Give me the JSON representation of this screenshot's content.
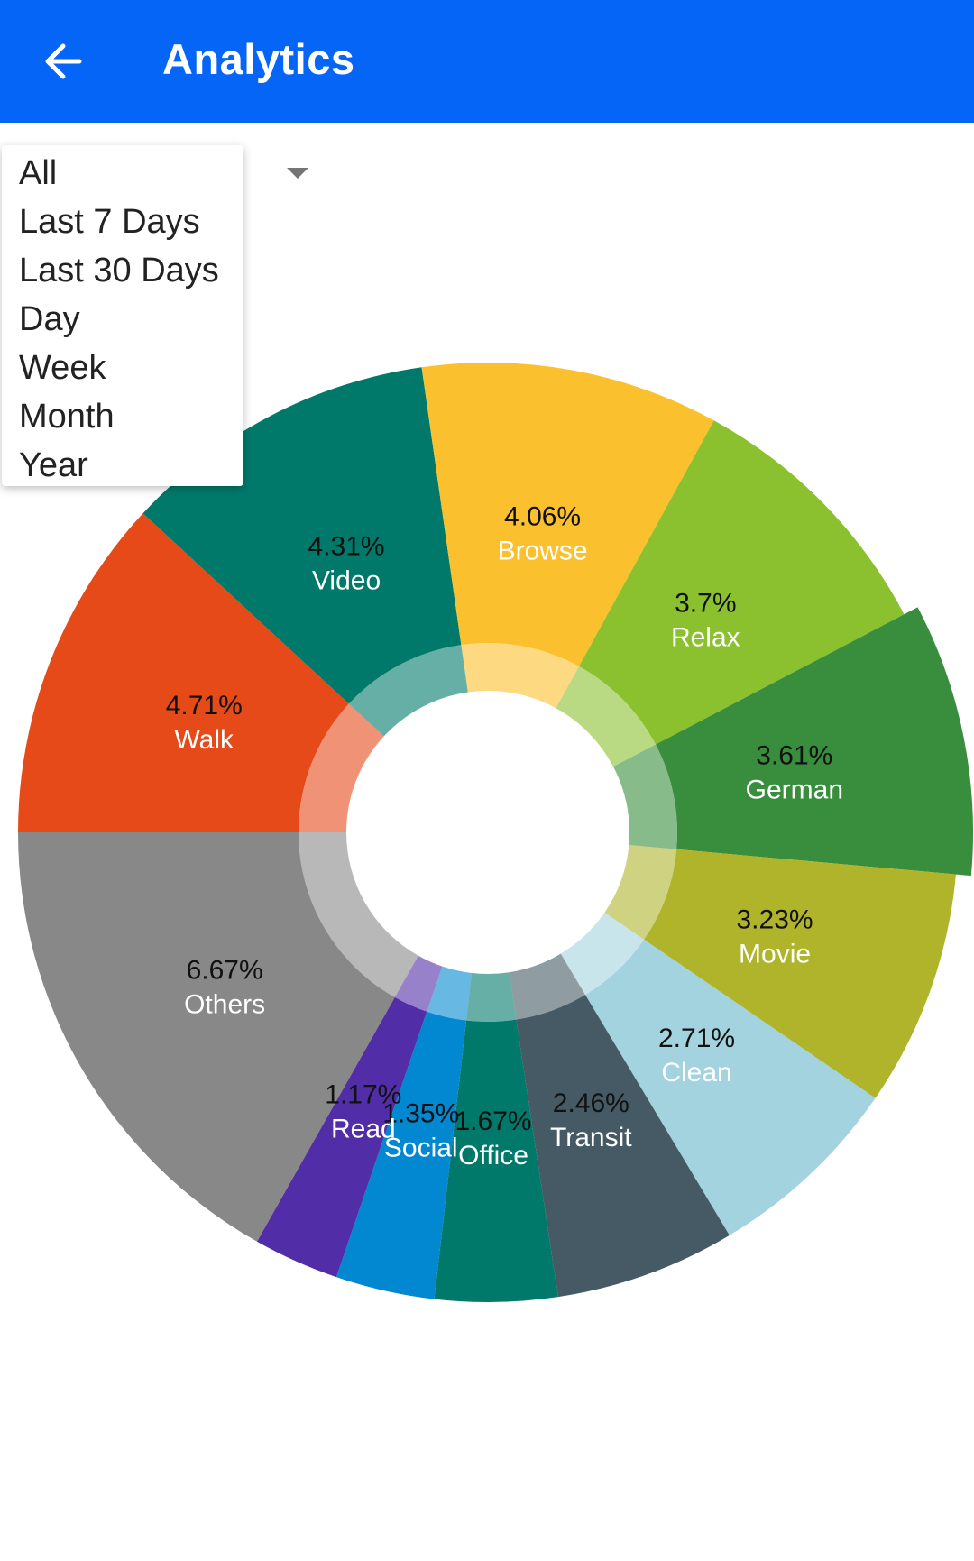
{
  "header": {
    "title": "Analytics",
    "back_icon": "arrow-left-icon",
    "color": "#0565f6"
  },
  "filter": {
    "dropdown_icon": "triangle-down-icon",
    "options": [
      "All",
      "Last 7 Days",
      "Last 30 Days",
      "Day",
      "Week",
      "Month",
      "Year"
    ]
  },
  "chart_data": {
    "type": "pie",
    "variant": "donut",
    "unit": "%",
    "highlighted": "German",
    "slices": [
      {
        "name": "Walk",
        "value": 4.71,
        "label": "4.71%",
        "color": "#e64a19"
      },
      {
        "name": "Video",
        "value": 4.31,
        "label": "4.31%",
        "color": "#00796b"
      },
      {
        "name": "Browse",
        "value": 4.06,
        "label": "4.06%",
        "color": "#fbc02d"
      },
      {
        "name": "Relax",
        "value": 3.7,
        "label": "3.7%",
        "color": "#8bc02e"
      },
      {
        "name": "German",
        "value": 3.61,
        "label": "3.61%",
        "color": "#388e3c"
      },
      {
        "name": "Movie",
        "value": 3.23,
        "label": "3.23%",
        "color": "#afb42b"
      },
      {
        "name": "Clean",
        "value": 2.71,
        "label": "2.71%",
        "color": "#a2d3de"
      },
      {
        "name": "Transit",
        "value": 2.46,
        "label": "2.46%",
        "color": "#455a64"
      },
      {
        "name": "Office",
        "value": 1.67,
        "label": "1.67%",
        "color": "#00796b"
      },
      {
        "name": "Social",
        "value": 1.35,
        "label": "1.35%",
        "color": "#0288d1"
      },
      {
        "name": "Read",
        "value": 1.17,
        "label": "1.17%",
        "color": "#512da8"
      },
      {
        "name": "Others",
        "value": 6.67,
        "label": "6.67%",
        "color": "#888888"
      }
    ]
  }
}
